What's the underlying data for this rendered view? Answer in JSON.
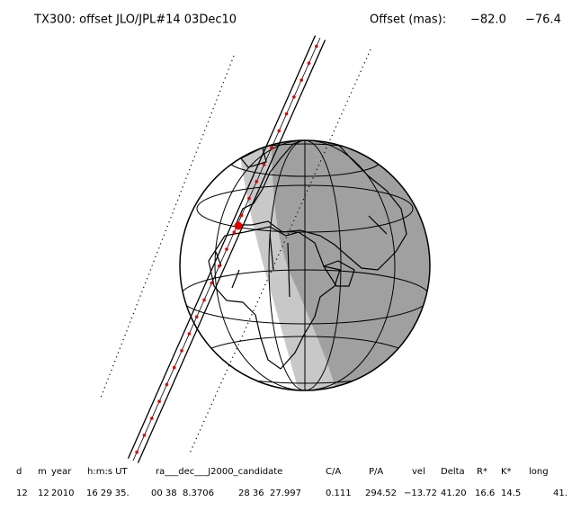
{
  "header": {
    "title": "TX300: offset JLO/JPL#14 03Dec10",
    "offset_label": "Offset (mas):",
    "offset_values": [
      "−82.0",
      "−76.4"
    ]
  },
  "table": {
    "headers": [
      "d",
      "m",
      "year",
      "h:m:s UT",
      "ra___dec___J2000_candidate",
      "C/A",
      "P/A",
      "vel",
      "Delta",
      "R*",
      "K*",
      "long"
    ],
    "rows": [
      [
        "12",
        "12",
        "2010",
        "16 29 35.",
        "00 38  8.3706",
        "28 36  27.997",
        "0.111",
        "294.52",
        "−13.72",
        "41.20",
        "16.6",
        "14.5",
        "41."
      ]
    ]
  }
}
